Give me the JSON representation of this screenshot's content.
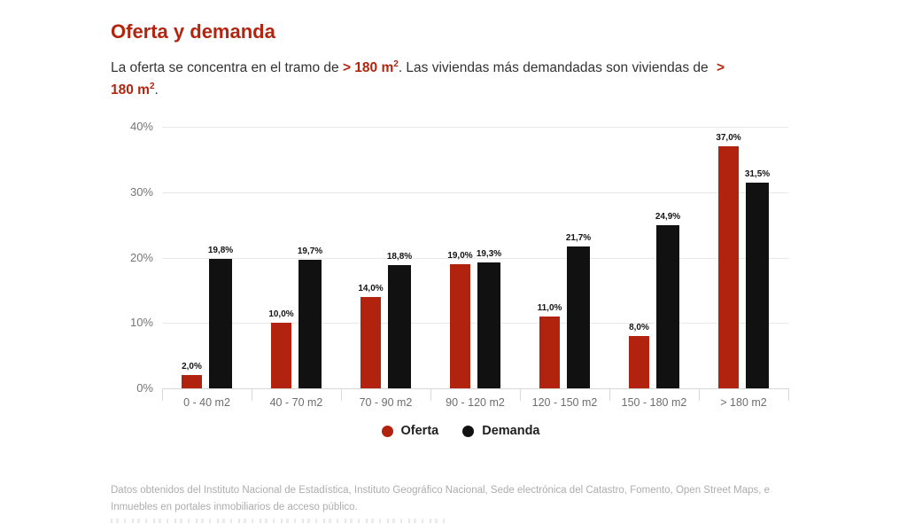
{
  "header": {
    "title": "Oferta y demanda",
    "subtitle": {
      "part1": "La oferta se concentra en el tramo de ",
      "highlight1": "> 180 m",
      "sup": "2",
      "part2": ". Las viviendas más demandadas son viviendas de ",
      "highlight2_symbol": ">",
      "highlight2": "180 m",
      "part3": "."
    }
  },
  "colors": {
    "accent_red": "#b2250f",
    "bar_red": "#b2230f",
    "bar_black": "#111111",
    "axis_gray": "#757575",
    "footer_gray": "#adadad"
  },
  "chart_data": {
    "type": "bar",
    "title": "Oferta y demanda",
    "categories": [
      "0 - 40 m2",
      "40 - 70 m2",
      "70 - 90 m2",
      "90 - 120 m2",
      "120 - 150 m2",
      "150 - 180 m2",
      "> 180 m2"
    ],
    "series": [
      {
        "name": "Oferta",
        "color": "#b2230f",
        "values": [
          2.0,
          10.0,
          14.0,
          19.0,
          11.0,
          8.0,
          37.0
        ],
        "labels": [
          "2,0%",
          "10,0%",
          "14,0%",
          "19,0%",
          "11,0%",
          "8,0%",
          "37,0%"
        ]
      },
      {
        "name": "Demanda",
        "color": "#111111",
        "values": [
          19.8,
          19.7,
          18.8,
          19.3,
          21.7,
          24.9,
          31.5
        ],
        "labels": [
          "19,8%",
          "19,7%",
          "18,8%",
          "19,3%",
          "21,7%",
          "24,9%",
          "31,5%"
        ]
      }
    ],
    "xlabel": "",
    "ylabel": "",
    "ylim": [
      0,
      40
    ],
    "yticks": [
      {
        "value": 0,
        "label": "0%"
      },
      {
        "value": 10,
        "label": "10%"
      },
      {
        "value": 20,
        "label": "20%"
      },
      {
        "value": 30,
        "label": "30%"
      },
      {
        "value": 40,
        "label": "40%"
      }
    ],
    "grid": true,
    "legend_position": "bottom"
  },
  "footer": {
    "line1": "Datos obtenidos del Instituto Nacional de Estadística, Instituto Geográfico Nacional, Sede electrónica del Catastro, Fomento, Open Street Maps, e",
    "line2": "Inmuebles en portales inmobiliarios de acceso público."
  }
}
